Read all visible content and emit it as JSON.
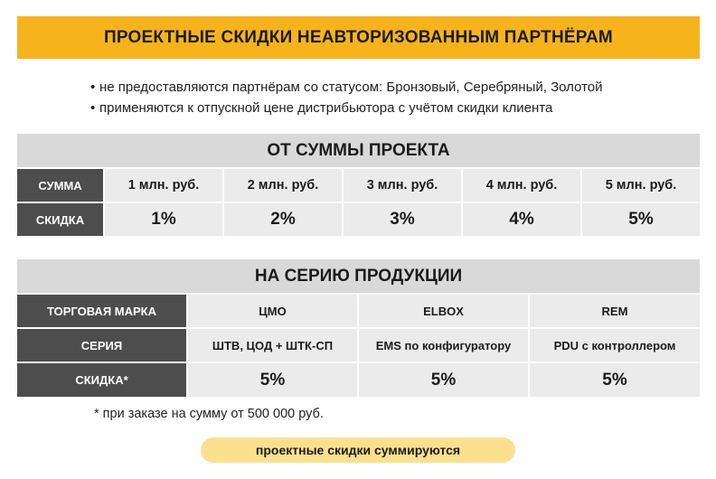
{
  "title": "ПРОЕКТНЫЕ СКИДКИ НЕАВТОРИЗОВАННЫМ ПАРТНЁРАМ",
  "bullet_symbol": "•",
  "bullets": [
    "не предоставляются партнёрам со статусом: Бронзовый, Серебряный, Золотой",
    "применяются к отпускной цене дистрибьютора с учётом скидки клиента"
  ],
  "project_sum": {
    "heading": "ОТ СУММЫ ПРОЕКТА",
    "row_sum_label": "СУММА",
    "row_discount_label": "СКИДКА",
    "sums": [
      "1 млн. руб.",
      "2 млн. руб.",
      "3 млн. руб.",
      "4 млн. руб.",
      "5 млн. руб."
    ],
    "discounts": [
      "1%",
      "2%",
      "3%",
      "4%",
      "5%"
    ]
  },
  "product_series": {
    "heading": "НА СЕРИЮ ПРОДУКЦИИ",
    "row_brand_label": "ТОРГОВАЯ МАРКА",
    "row_series_label": "СЕРИЯ",
    "row_discount_label": "СКИДКА*",
    "brands": [
      "ЦМО",
      "ELBOX",
      "REM"
    ],
    "series": [
      "ШТВ, ЦОД + ШТК-СП",
      "EMS по конфигуратору",
      "PDU с контроллером"
    ],
    "discounts": [
      "5%",
      "5%",
      "5%"
    ]
  },
  "footnote": "* при заказе на сумму от 500 000 руб.",
  "note_pill": "проектные скидки суммируются"
}
